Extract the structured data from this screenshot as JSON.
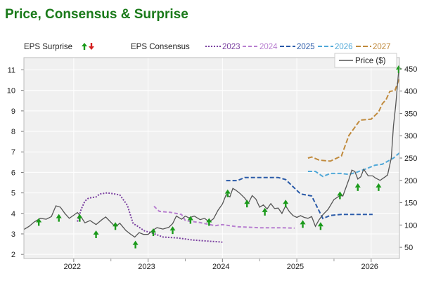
{
  "title": "Price, Consensus & Surprise",
  "legend": {
    "surprise_label": "EPS Surprise",
    "consensus_label": "EPS Consensus",
    "price_label": "Price ($)"
  },
  "colors": {
    "title": "#1a7a1a",
    "price": "#555555",
    "up_arrow": "#1a9a1a",
    "down_arrow": "#d42020",
    "grid": "#ffffff",
    "plot_bg": "#f0f0f0"
  },
  "chart_data": {
    "type": "line",
    "title": "Price, Consensus & Surprise",
    "x_range": [
      2021.33,
      2026.38
    ],
    "x_ticks": [
      "2022",
      "2023",
      "2024",
      "2025",
      "2026"
    ],
    "left_axis": {
      "label": "EPS",
      "range": [
        1.8,
        11.6
      ],
      "ticks": [
        "2",
        "3",
        "4",
        "5",
        "6",
        "7",
        "8",
        "9",
        "10",
        "11"
      ]
    },
    "right_axis": {
      "label": "Price ($)",
      "range": [
        25,
        475
      ],
      "ticks": [
        "50",
        "100",
        "150",
        "200",
        "250",
        "300",
        "350",
        "400",
        "450"
      ]
    },
    "consensus_series": [
      {
        "name": "2023",
        "color": "#7a3fa0",
        "dash": "2,2",
        "points": [
          [
            2022.05,
            3.6
          ],
          [
            2022.1,
            4.2
          ],
          [
            2022.15,
            4.6
          ],
          [
            2022.2,
            4.75
          ],
          [
            2022.3,
            4.8
          ],
          [
            2022.35,
            4.95
          ],
          [
            2022.45,
            5.0
          ],
          [
            2022.55,
            4.95
          ],
          [
            2022.62,
            4.9
          ],
          [
            2022.72,
            4.4
          ],
          [
            2022.8,
            3.5
          ],
          [
            2022.85,
            3.4
          ],
          [
            2022.95,
            3.15
          ],
          [
            2023.05,
            3.05
          ],
          [
            2023.2,
            2.85
          ],
          [
            2023.4,
            2.8
          ],
          [
            2023.6,
            2.7
          ],
          [
            2023.8,
            2.65
          ],
          [
            2024.0,
            2.6
          ]
        ]
      },
      {
        "name": "2024",
        "color": "#b87fd0",
        "dash": "5,3",
        "points": [
          [
            2023.08,
            4.35
          ],
          [
            2023.15,
            4.1
          ],
          [
            2023.3,
            4.05
          ],
          [
            2023.45,
            3.95
          ],
          [
            2023.5,
            3.65
          ],
          [
            2023.7,
            3.55
          ],
          [
            2023.9,
            3.4
          ],
          [
            2024.0,
            3.45
          ],
          [
            2024.2,
            3.35
          ],
          [
            2024.5,
            3.3
          ],
          [
            2024.8,
            3.3
          ],
          [
            2024.97,
            3.28
          ]
        ]
      },
      {
        "name": "2025",
        "color": "#2a5aa8",
        "dash": "6,3",
        "points": [
          [
            2024.05,
            5.6
          ],
          [
            2024.2,
            5.6
          ],
          [
            2024.3,
            5.75
          ],
          [
            2024.55,
            5.75
          ],
          [
            2024.75,
            5.75
          ],
          [
            2024.85,
            5.65
          ],
          [
            2024.95,
            5.3
          ],
          [
            2025.05,
            4.95
          ],
          [
            2025.2,
            4.85
          ],
          [
            2025.35,
            3.75
          ],
          [
            2025.45,
            3.9
          ],
          [
            2025.6,
            3.95
          ],
          [
            2025.8,
            3.95
          ],
          [
            2026.02,
            3.95
          ]
        ]
      },
      {
        "name": "2026",
        "color": "#50a8d8",
        "dash": "6,3",
        "points": [
          [
            2025.15,
            6.05
          ],
          [
            2025.25,
            6.05
          ],
          [
            2025.35,
            5.8
          ],
          [
            2025.45,
            5.95
          ],
          [
            2025.6,
            5.95
          ],
          [
            2025.7,
            5.9
          ],
          [
            2025.8,
            6.0
          ],
          [
            2025.95,
            6.2
          ],
          [
            2026.05,
            6.35
          ],
          [
            2026.15,
            6.4
          ],
          [
            2026.3,
            6.7
          ],
          [
            2026.38,
            6.95
          ]
        ]
      },
      {
        "name": "2027",
        "color": "#c08a3c",
        "dash": "7,3",
        "points": [
          [
            2025.15,
            6.7
          ],
          [
            2025.2,
            6.75
          ],
          [
            2025.3,
            6.6
          ],
          [
            2025.45,
            6.55
          ],
          [
            2025.6,
            6.8
          ],
          [
            2025.7,
            7.8
          ],
          [
            2025.78,
            8.2
          ],
          [
            2025.85,
            8.55
          ],
          [
            2026.0,
            8.6
          ],
          [
            2026.1,
            8.95
          ],
          [
            2026.15,
            9.35
          ],
          [
            2026.2,
            9.55
          ],
          [
            2026.25,
            9.95
          ],
          [
            2026.32,
            10.0
          ],
          [
            2026.38,
            10.6
          ]
        ]
      }
    ],
    "price_series": {
      "name": "Price ($)",
      "axis": "right",
      "color": "#555555",
      "points": [
        [
          2021.33,
          90
        ],
        [
          2021.4,
          97
        ],
        [
          2021.47,
          107
        ],
        [
          2021.55,
          115
        ],
        [
          2021.63,
          113
        ],
        [
          2021.7,
          119
        ],
        [
          2021.76,
          143
        ],
        [
          2021.82,
          140
        ],
        [
          2021.88,
          126
        ],
        [
          2021.94,
          115
        ],
        [
          2022.0,
          122
        ],
        [
          2022.05,
          128
        ],
        [
          2022.1,
          118
        ],
        [
          2022.15,
          105
        ],
        [
          2022.22,
          110
        ],
        [
          2022.3,
          101
        ],
        [
          2022.38,
          112
        ],
        [
          2022.43,
          118
        ],
        [
          2022.5,
          106
        ],
        [
          2022.56,
          96
        ],
        [
          2022.62,
          104
        ],
        [
          2022.7,
          88
        ],
        [
          2022.76,
          80
        ],
        [
          2022.82,
          73
        ],
        [
          2022.88,
          83
        ],
        [
          2022.94,
          79
        ],
        [
          2023.0,
          79
        ],
        [
          2023.06,
          88
        ],
        [
          2023.12,
          94
        ],
        [
          2023.2,
          91
        ],
        [
          2023.28,
          95
        ],
        [
          2023.33,
          103
        ],
        [
          2023.38,
          120
        ],
        [
          2023.45,
          113
        ],
        [
          2023.5,
          120
        ],
        [
          2023.55,
          116
        ],
        [
          2023.62,
          120
        ],
        [
          2023.7,
          112
        ],
        [
          2023.76,
          115
        ],
        [
          2023.82,
          107
        ],
        [
          2023.88,
          114
        ],
        [
          2023.94,
          133
        ],
        [
          2024.0,
          147
        ],
        [
          2024.05,
          168
        ],
        [
          2024.1,
          163
        ],
        [
          2024.14,
          182
        ],
        [
          2024.18,
          178
        ],
        [
          2024.24,
          170
        ],
        [
          2024.3,
          160
        ],
        [
          2024.35,
          149
        ],
        [
          2024.4,
          166
        ],
        [
          2024.45,
          158
        ],
        [
          2024.5,
          140
        ],
        [
          2024.55,
          145
        ],
        [
          2024.6,
          136
        ],
        [
          2024.65,
          148
        ],
        [
          2024.7,
          137
        ],
        [
          2024.75,
          138
        ],
        [
          2024.8,
          126
        ],
        [
          2024.85,
          143
        ],
        [
          2024.9,
          130
        ],
        [
          2024.95,
          121
        ],
        [
          2025.0,
          117
        ],
        [
          2025.05,
          121
        ],
        [
          2025.1,
          117
        ],
        [
          2025.15,
          115
        ],
        [
          2025.2,
          119
        ],
        [
          2025.25,
          97
        ],
        [
          2025.3,
          112
        ],
        [
          2025.35,
          123
        ],
        [
          2025.42,
          135
        ],
        [
          2025.5,
          157
        ],
        [
          2025.58,
          166
        ],
        [
          2025.62,
          165
        ],
        [
          2025.7,
          202
        ],
        [
          2025.74,
          223
        ],
        [
          2025.78,
          220
        ],
        [
          2025.82,
          203
        ],
        [
          2025.86,
          208
        ],
        [
          2025.9,
          225
        ],
        [
          2025.96,
          210
        ],
        [
          2026.02,
          210
        ],
        [
          2026.06,
          205
        ],
        [
          2026.12,
          200
        ],
        [
          2026.18,
          207
        ],
        [
          2026.22,
          212
        ],
        [
          2026.27,
          250
        ],
        [
          2026.3,
          322
        ],
        [
          2026.33,
          368
        ],
        [
          2026.37,
          445
        ]
      ]
    },
    "surprises": [
      {
        "x": 2021.53,
        "y": 3.6,
        "dir": "up"
      },
      {
        "x": 2021.8,
        "y": 3.8,
        "dir": "up"
      },
      {
        "x": 2022.08,
        "y": 3.8,
        "dir": "up"
      },
      {
        "x": 2022.3,
        "y": 3.0,
        "dir": "up"
      },
      {
        "x": 2022.56,
        "y": 3.4,
        "dir": "up"
      },
      {
        "x": 2022.83,
        "y": 2.5,
        "dir": "up"
      },
      {
        "x": 2023.07,
        "y": 3.1,
        "dir": "up"
      },
      {
        "x": 2023.33,
        "y": 3.2,
        "dir": "up"
      },
      {
        "x": 2023.57,
        "y": 3.7,
        "dir": "up"
      },
      {
        "x": 2023.82,
        "y": 3.6,
        "dir": "up"
      },
      {
        "x": 2024.07,
        "y": 5.0,
        "dir": "up"
      },
      {
        "x": 2024.33,
        "y": 4.5,
        "dir": "up"
      },
      {
        "x": 2024.57,
        "y": 4.1,
        "dir": "up"
      },
      {
        "x": 2024.85,
        "y": 4.5,
        "dir": "up"
      },
      {
        "x": 2025.08,
        "y": 3.5,
        "dir": "up"
      },
      {
        "x": 2025.32,
        "y": 3.4,
        "dir": "up"
      },
      {
        "x": 2025.58,
        "y": 4.9,
        "dir": "up"
      },
      {
        "x": 2025.82,
        "y": 5.3,
        "dir": "up"
      },
      {
        "x": 2026.1,
        "y": 5.3,
        "dir": "up"
      },
      {
        "x": 2026.37,
        "y": 11.05,
        "dir": "up"
      }
    ]
  }
}
